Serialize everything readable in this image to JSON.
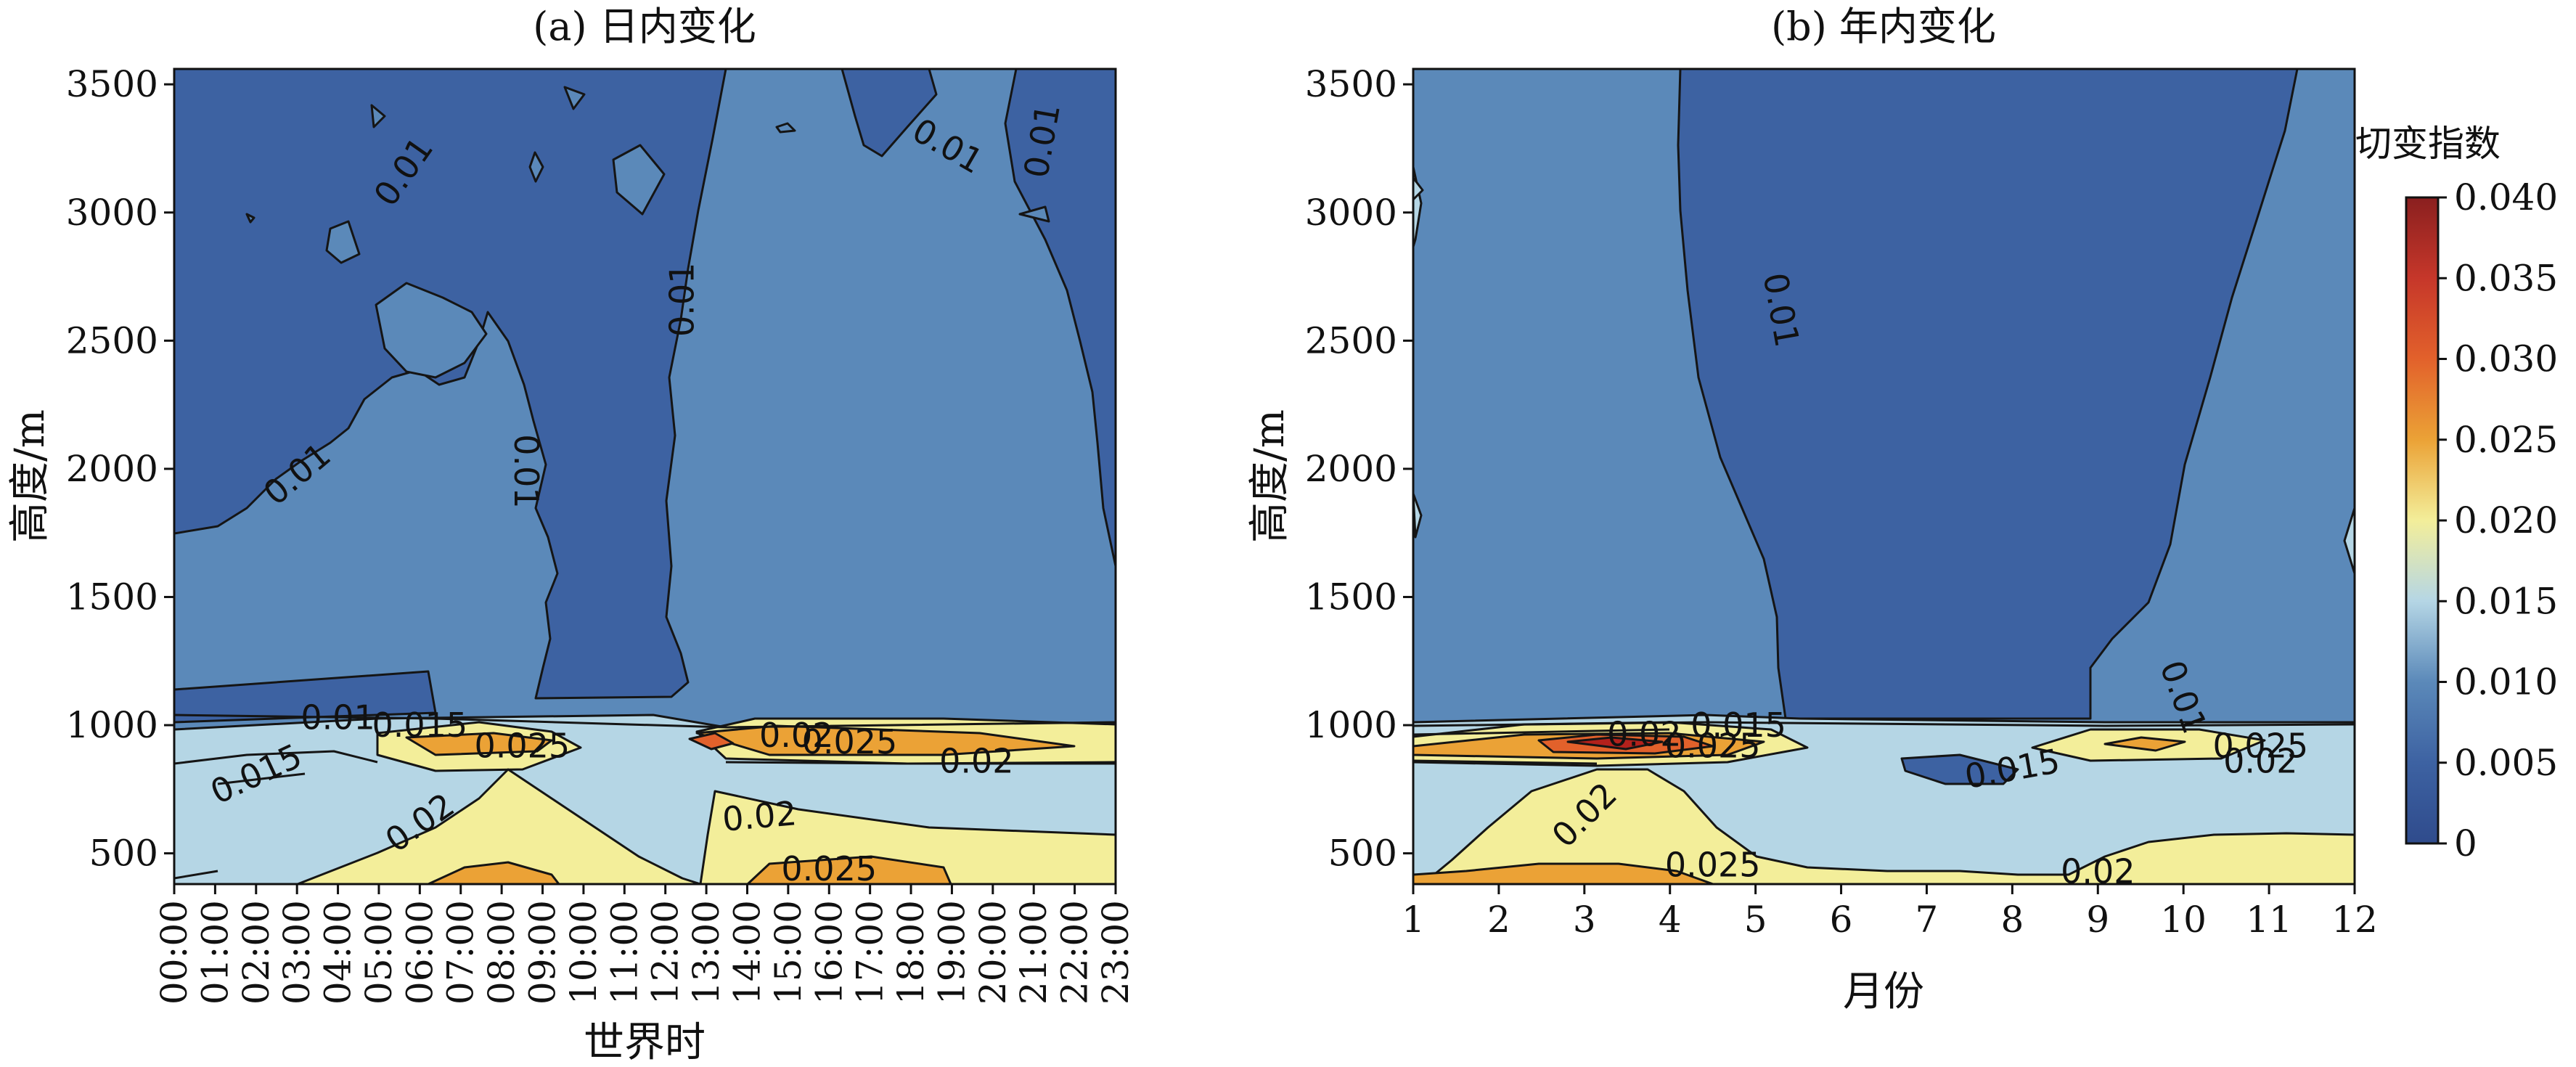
{
  "chart_data": [
    {
      "type": "heatmap",
      "subtype": "filled-contour",
      "title": "(a) 日内变化",
      "xlabel": "世界时",
      "ylabel": "高度/m",
      "x_categories": [
        "00:00",
        "01:00",
        "02:00",
        "03:00",
        "04:00",
        "05:00",
        "06:00",
        "07:00",
        "08:00",
        "09:00",
        "10:00",
        "11:00",
        "12:00",
        "13:00",
        "14:00",
        "15:00",
        "16:00",
        "17:00",
        "18:00",
        "19:00",
        "20:00",
        "21:00",
        "22:00",
        "23:00"
      ],
      "x_tick_orientation": "vertical",
      "y_ticks": [
        500,
        1000,
        1500,
        2000,
        2500,
        3000,
        3500
      ],
      "ylim": [
        380,
        3560
      ],
      "contour_labels": [
        {
          "text": "0.01",
          "x": 5.6,
          "y": 3160,
          "angle": -55
        },
        {
          "text": "0.01",
          "x": 12.4,
          "y": 2660,
          "angle": -90
        },
        {
          "text": "0.01",
          "x": 8.6,
          "y": 1990,
          "angle": 90
        },
        {
          "text": "0.01",
          "x": 3.0,
          "y": 1980,
          "angle": -40
        },
        {
          "text": "0.01",
          "x": 18.9,
          "y": 3260,
          "angle": 30
        },
        {
          "text": "0.01",
          "x": 21.2,
          "y": 3280,
          "angle": -80
        },
        {
          "text": "0.01",
          "x": 4.0,
          "y": 1030,
          "angle": 0
        },
        {
          "text": "0.015",
          "x": 6.0,
          "y": 1000,
          "angle": 0
        },
        {
          "text": "0.025",
          "x": 8.5,
          "y": 920,
          "angle": 0
        },
        {
          "text": "0.015",
          "x": 2.0,
          "y": 810,
          "angle": -25
        },
        {
          "text": "0.02",
          "x": 6.0,
          "y": 620,
          "angle": -35
        },
        {
          "text": "0.02",
          "x": 15.2,
          "y": 960,
          "angle": 0
        },
        {
          "text": "0.025",
          "x": 16.5,
          "y": 935,
          "angle": 0
        },
        {
          "text": "0.02",
          "x": 19.6,
          "y": 860,
          "angle": 0
        },
        {
          "text": "0.02",
          "x": 14.3,
          "y": 645,
          "angle": -5
        },
        {
          "text": "0.025",
          "x": 16.0,
          "y": 440,
          "angle": 0
        }
      ]
    },
    {
      "type": "heatmap",
      "subtype": "filled-contour",
      "title": "(b) 年内变化",
      "xlabel": "月份",
      "ylabel": "高度/m",
      "x_categories": [
        "1",
        "2",
        "3",
        "4",
        "5",
        "6",
        "7",
        "8",
        "9",
        "10",
        "11",
        "12"
      ],
      "y_ticks": [
        500,
        1000,
        1500,
        2000,
        2500,
        3000,
        3500
      ],
      "ylim": [
        380,
        3560
      ],
      "contour_labels": [
        {
          "text": "0.01",
          "x": 4.3,
          "y": 2620,
          "angle": 80
        },
        {
          "text": "0.01",
          "x": 9.0,
          "y": 1110,
          "angle": 70
        },
        {
          "text": "0.015",
          "x": 3.8,
          "y": 1000,
          "angle": 0
        },
        {
          "text": "0.02",
          "x": 2.7,
          "y": 965,
          "angle": 0
        },
        {
          "text": "0.025",
          "x": 3.5,
          "y": 920,
          "angle": 0
        },
        {
          "text": "0.015",
          "x": 7.0,
          "y": 830,
          "angle": -10
        },
        {
          "text": "0.025",
          "x": 9.9,
          "y": 920,
          "angle": 0
        },
        {
          "text": "0.02",
          "x": 9.9,
          "y": 860,
          "angle": 0
        },
        {
          "text": "0.02",
          "x": 2.0,
          "y": 650,
          "angle": -45
        },
        {
          "text": "0.025",
          "x": 3.5,
          "y": 455,
          "angle": 0
        },
        {
          "text": "0.02",
          "x": 8.0,
          "y": 430,
          "angle": 0
        }
      ]
    }
  ],
  "colorbar": {
    "title": "切变指数",
    "range": [
      0,
      0.04
    ],
    "ticks": [
      "0.040",
      "0.035",
      "0.030",
      "0.025",
      "0.020",
      "0.015",
      "0.010",
      "0.005",
      "0"
    ]
  },
  "colors": {
    "lt_0.005": "#2f4b8c",
    "0.005_0.01": "#3d62a2",
    "0.01_0.015": "#5b89b9",
    "0.015_0.02": "#b5d6e5",
    "0.02_0.025": "#f3ee9a",
    "0.025_0.03": "#eba236",
    "0.03_0.035": "#e2612b",
    "0.035_0.04": "#b3211c"
  }
}
